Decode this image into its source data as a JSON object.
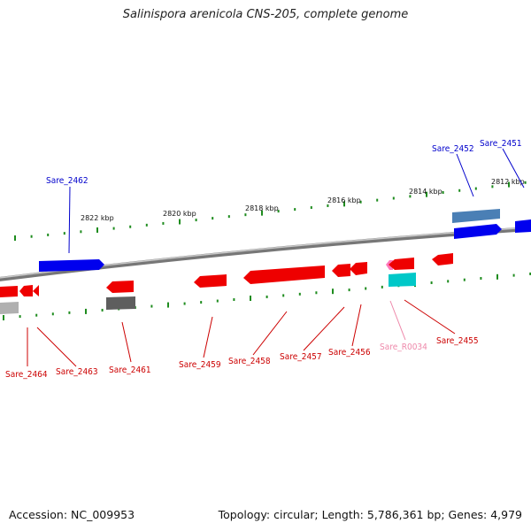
{
  "title": "Salinispora arenicola CNS-205, complete genome",
  "footer": {
    "accession": "Accession: NC_009953",
    "summary": "Topology: circular; Length: 5,786,361 bp; Genes: 4,979"
  },
  "colors": {
    "gene": "#ff0000",
    "gene_reverse": "#ff0000",
    "plus_strand": "#0000ff",
    "rna": "#ff69b4",
    "other": "#00c8c8",
    "pseudo": "#707070",
    "plus_pseudo": "#4a7fb5",
    "label_minus": "#cc0000",
    "label_plus": "#0000cc",
    "label_rna": "#ee88aa",
    "backbone": "#888888",
    "tick": "#1e8c1e"
  },
  "kbp_labels": [
    "2822 kbp",
    "2820 kbp",
    "2818 kbp",
    "2816 kbp",
    "2814 kbp",
    "2812 kbp"
  ],
  "gene_labels": {
    "plus": [
      "Sare_2462",
      "Sare_2452",
      "Sare_2451"
    ],
    "minus": [
      "Sare_2464",
      "Sare_2463",
      "Sare_2461",
      "Sare_2459",
      "Sare_2458",
      "Sare_2457",
      "Sare_2456",
      "Sare_R0034",
      "Sare_2455"
    ]
  }
}
